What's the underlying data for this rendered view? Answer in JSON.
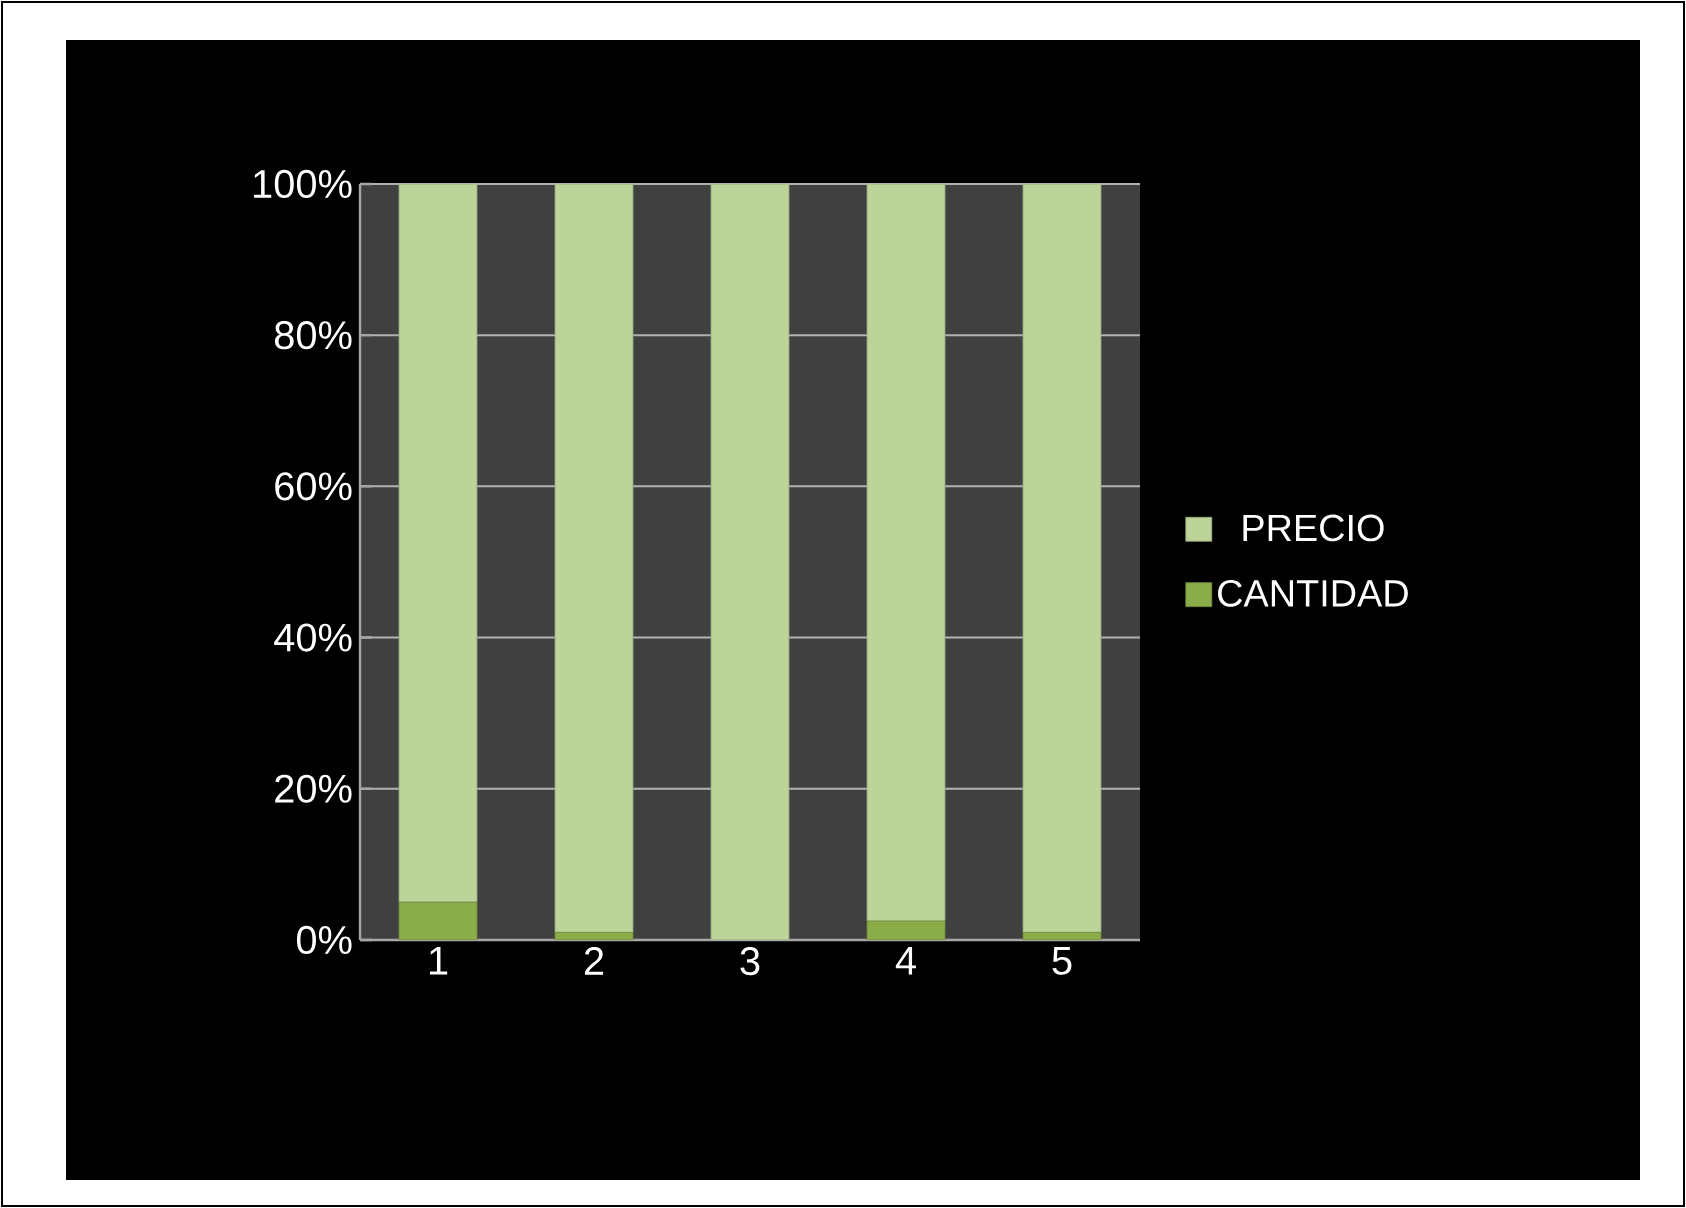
{
  "chart_data": {
    "type": "bar",
    "stacked": true,
    "categories": [
      "1",
      "2",
      "3",
      "4",
      "5"
    ],
    "series": [
      {
        "name": "CANTIDAD",
        "color": "#8aad4a",
        "values": [
          5,
          1,
          0,
          2.5,
          1
        ]
      },
      {
        "name": "PRECIO",
        "color": "#bcd39a",
        "values": [
          95,
          99,
          100,
          97.5,
          99
        ]
      }
    ],
    "ylim": [
      0,
      100
    ],
    "yticks": [
      {
        "value": 0,
        "label": "0%"
      },
      {
        "value": 20,
        "label": "20%"
      },
      {
        "value": 40,
        "label": "40%"
      },
      {
        "value": 60,
        "label": "60%"
      },
      {
        "value": 80,
        "label": "80%"
      },
      {
        "value": 100,
        "label": "100%"
      }
    ],
    "grid": "y",
    "legend": "right"
  }
}
